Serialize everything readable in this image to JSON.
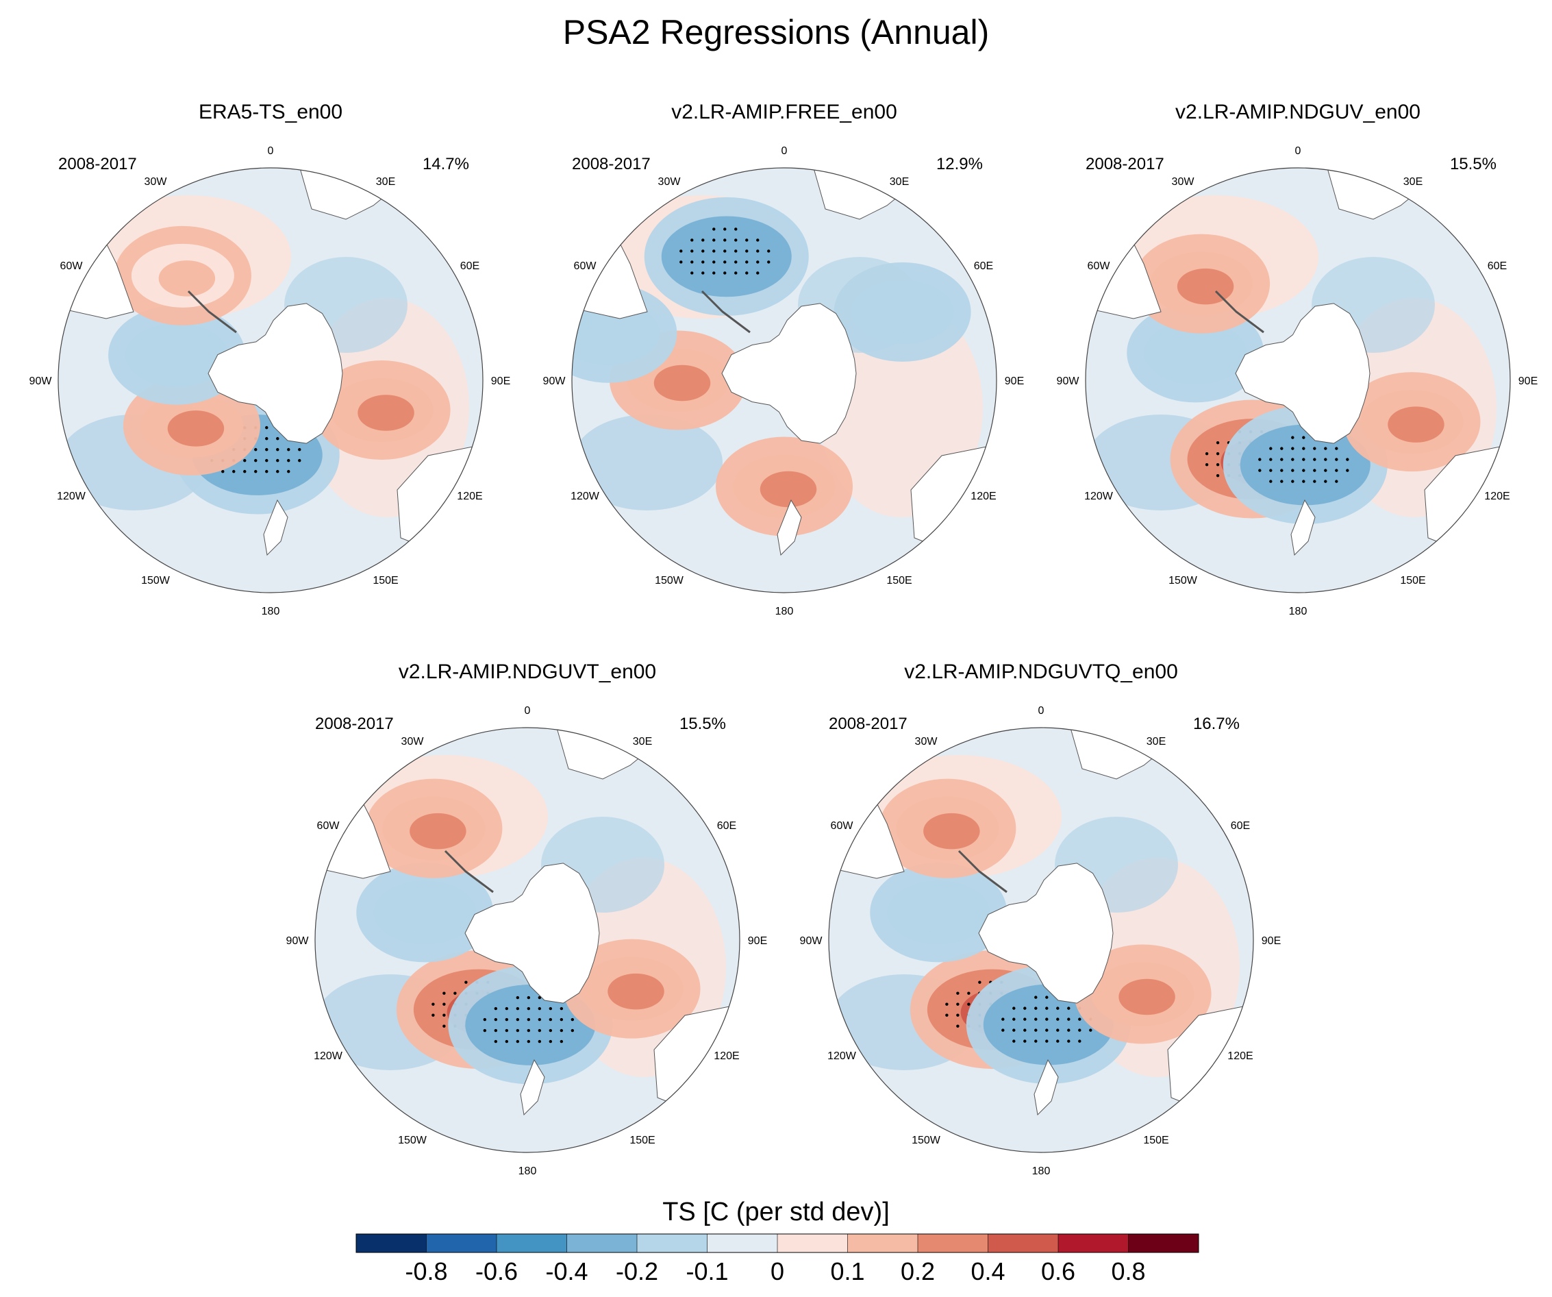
{
  "figure_title": "PSA2 Regressions (Annual)",
  "colorbar": {
    "title": "TS [C (per std dev)]",
    "tick_labels": [
      "-0.8",
      "-0.6",
      "-0.4",
      "-0.2",
      "-0.1",
      "0",
      "0.1",
      "0.2",
      "0.4",
      "0.6",
      "0.8"
    ],
    "colors": [
      "#08306b",
      "#2166ac",
      "#4393c3",
      "#7bb3d6",
      "#b5d5e8",
      "#e3ecf3",
      "#fbe3dc",
      "#f6bba4",
      "#e58a70",
      "#d05a4c",
      "#b1182b",
      "#6d0016"
    ]
  },
  "chart_data": [
    {
      "type": "polar-map",
      "title": "ERA5-TS_en00",
      "period": "2008-2017",
      "percent_variance": "14.7%",
      "longitude_labels": [
        "0",
        "30E",
        "60E",
        "90E",
        "120E",
        "150E",
        "180",
        "150W",
        "120W",
        "90W",
        "60W",
        "30W"
      ],
      "anomaly_regions": [
        {
          "lon": -170,
          "lat": -65,
          "value": -0.4,
          "significant": true
        },
        {
          "lon": -120,
          "lat": -60,
          "value": 0.2,
          "significant": false
        },
        {
          "lon": -75,
          "lat": -58,
          "value": -0.2,
          "significant": false
        },
        {
          "lon": -40,
          "lat": -45,
          "value": 0.1,
          "significant": false
        },
        {
          "lon": 105,
          "lat": -52,
          "value": 0.2,
          "significant": false
        }
      ]
    },
    {
      "type": "polar-map",
      "title": "v2.LR-AMIP.FREE_en00",
      "period": "2008-2017",
      "percent_variance": "12.9%",
      "longitude_labels": [
        "0",
        "30E",
        "60E",
        "90E",
        "120E",
        "150E",
        "180",
        "150W",
        "120W",
        "90W",
        "60W",
        "30W"
      ],
      "anomaly_regions": [
        {
          "lon": -90,
          "lat": -55,
          "value": 0.2,
          "significant": false
        },
        {
          "lon": 180,
          "lat": -55,
          "value": 0.2,
          "significant": false
        },
        {
          "lon": -25,
          "lat": -45,
          "value": -0.4,
          "significant": true
        },
        {
          "lon": 60,
          "lat": -45,
          "value": -0.2,
          "significant": false
        },
        {
          "lon": -75,
          "lat": -30,
          "value": -0.2,
          "significant": false
        }
      ]
    },
    {
      "type": "polar-map",
      "title": "v2.LR-AMIP.NDGUV_en00",
      "period": "2008-2017",
      "percent_variance": "15.5%",
      "longitude_labels": [
        "0",
        "30E",
        "60E",
        "90E",
        "120E",
        "150E",
        "180",
        "150W",
        "120W",
        "90W",
        "60W",
        "30W"
      ],
      "anomaly_regions": [
        {
          "lon": -150,
          "lat": -60,
          "value": 0.4,
          "significant": true
        },
        {
          "lon": 175,
          "lat": -62,
          "value": -0.4,
          "significant": true
        },
        {
          "lon": -75,
          "lat": -55,
          "value": -0.2,
          "significant": false
        },
        {
          "lon": -45,
          "lat": -45,
          "value": 0.2,
          "significant": false
        },
        {
          "lon": 110,
          "lat": -50,
          "value": 0.2,
          "significant": false
        }
      ]
    },
    {
      "type": "polar-map",
      "title": "v2.LR-AMIP.NDGUVT_en00",
      "period": "2008-2017",
      "percent_variance": "15.5%",
      "longitude_labels": [
        "0",
        "30E",
        "60E",
        "90E",
        "120E",
        "150E",
        "180",
        "150W",
        "120W",
        "90W",
        "60W",
        "30W"
      ],
      "anomaly_regions": [
        {
          "lon": -145,
          "lat": -62,
          "value": 0.4,
          "significant": true
        },
        {
          "lon": 178,
          "lat": -62,
          "value": -0.4,
          "significant": true
        },
        {
          "lon": -75,
          "lat": -55,
          "value": -0.2,
          "significant": false
        },
        {
          "lon": -40,
          "lat": -42,
          "value": 0.2,
          "significant": false
        },
        {
          "lon": 115,
          "lat": -52,
          "value": 0.2,
          "significant": false
        }
      ]
    },
    {
      "type": "polar-map",
      "title": "v2.LR-AMIP.NDGUVTQ_en00",
      "period": "2008-2017",
      "percent_variance": "16.7%",
      "longitude_labels": [
        "0",
        "30E",
        "60E",
        "90E",
        "120E",
        "150E",
        "180",
        "150W",
        "120W",
        "90W",
        "60W",
        "30W"
      ],
      "anomaly_regions": [
        {
          "lon": -145,
          "lat": -62,
          "value": 0.4,
          "significant": true
        },
        {
          "lon": 175,
          "lat": -62,
          "value": -0.4,
          "significant": true
        },
        {
          "lon": -75,
          "lat": -55,
          "value": -0.2,
          "significant": false
        },
        {
          "lon": -40,
          "lat": -42,
          "value": 0.2,
          "significant": false
        },
        {
          "lon": 118,
          "lat": -52,
          "value": 0.2,
          "significant": false
        }
      ]
    }
  ]
}
